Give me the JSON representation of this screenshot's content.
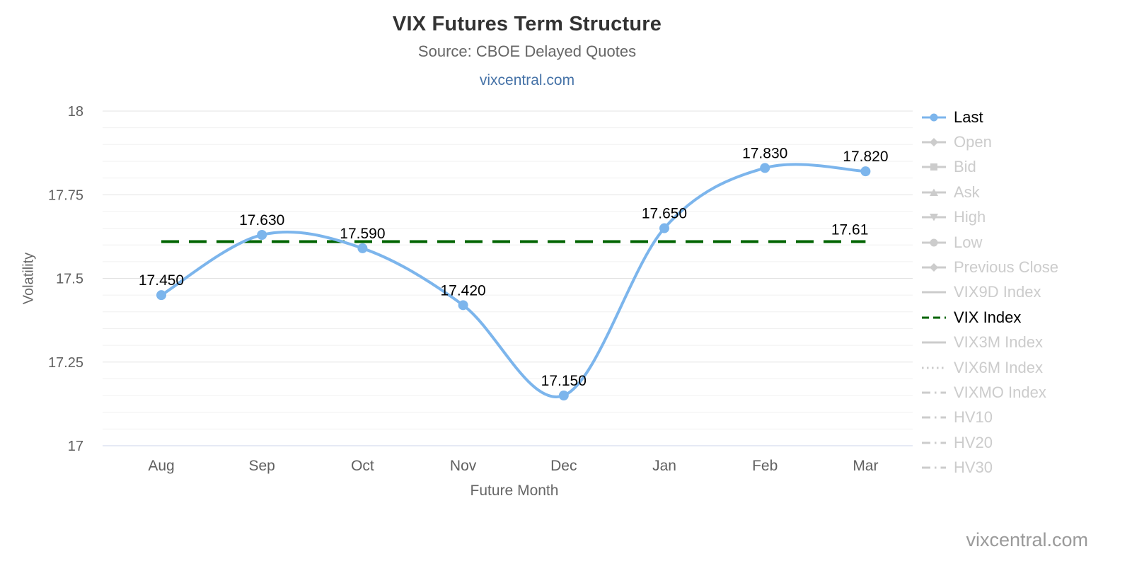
{
  "header": {
    "title": "VIX Futures Term Structure",
    "subtitle": "Source: CBOE Delayed Quotes",
    "link": "vixcentral.com"
  },
  "footer": {
    "watermark": "vixcentral.com"
  },
  "chart_data": {
    "type": "line",
    "title": "VIX Futures Term Structure",
    "subtitle": "Source: CBOE Delayed Quotes",
    "xlabel": "Future Month",
    "ylabel": "Volatility",
    "categories": [
      "Aug",
      "Sep",
      "Oct",
      "Nov",
      "Dec",
      "Jan",
      "Feb",
      "Mar"
    ],
    "series": [
      {
        "name": "Last",
        "color": "#7cb5ec",
        "marker": "circle",
        "values": [
          17.45,
          17.63,
          17.59,
          17.42,
          17.15,
          17.65,
          17.83,
          17.82
        ],
        "data_labels": [
          "17.450",
          "17.630",
          "17.590",
          "17.420",
          "17.150",
          "17.650",
          "17.830",
          "17.820"
        ]
      }
    ],
    "reference_line": {
      "name": "VIX Index",
      "value": 17.61,
      "label": "17.61",
      "color": "#006400",
      "dash": "dash"
    },
    "ylim": [
      17,
      18
    ],
    "yticks": [
      17,
      17.25,
      17.5,
      17.75,
      18
    ],
    "ytick_labels": [
      "17",
      "17.25",
      "17.5",
      "17.75",
      "18"
    ],
    "minor_tick_interval": 0.05,
    "grid": true,
    "legend_position": "right"
  },
  "legend": {
    "items": [
      {
        "label": "Last",
        "marker": "circle",
        "dash": "solid",
        "color": "#7cb5ec",
        "active": true
      },
      {
        "label": "Open",
        "marker": "diamond",
        "dash": "solid",
        "color": "#cccccc",
        "active": false
      },
      {
        "label": "Bid",
        "marker": "square",
        "dash": "solid",
        "color": "#cccccc",
        "active": false
      },
      {
        "label": "Ask",
        "marker": "triangle",
        "dash": "solid",
        "color": "#cccccc",
        "active": false
      },
      {
        "label": "High",
        "marker": "triangle-down",
        "dash": "solid",
        "color": "#cccccc",
        "active": false
      },
      {
        "label": "Low",
        "marker": "circle",
        "dash": "solid",
        "color": "#cccccc",
        "active": false
      },
      {
        "label": "Previous Close",
        "marker": "diamond",
        "dash": "solid",
        "color": "#cccccc",
        "active": false
      },
      {
        "label": "VIX9D Index",
        "marker": "none",
        "dash": "solid",
        "color": "#cccccc",
        "active": false
      },
      {
        "label": "VIX Index",
        "marker": "none",
        "dash": "dash",
        "color": "#006400",
        "active": true
      },
      {
        "label": "VIX3M Index",
        "marker": "none",
        "dash": "solid",
        "color": "#cccccc",
        "active": false
      },
      {
        "label": "VIX6M Index",
        "marker": "none",
        "dash": "dot",
        "color": "#cccccc",
        "active": false
      },
      {
        "label": "VIXMO Index",
        "marker": "none",
        "dash": "dashdot",
        "color": "#cccccc",
        "active": false
      },
      {
        "label": "HV10",
        "marker": "none",
        "dash": "dashdot",
        "color": "#cccccc",
        "active": false
      },
      {
        "label": "HV20",
        "marker": "none",
        "dash": "dashdot",
        "color": "#cccccc",
        "active": false
      },
      {
        "label": "HV30",
        "marker": "none",
        "dash": "dashdot",
        "color": "#cccccc",
        "active": false
      }
    ]
  }
}
